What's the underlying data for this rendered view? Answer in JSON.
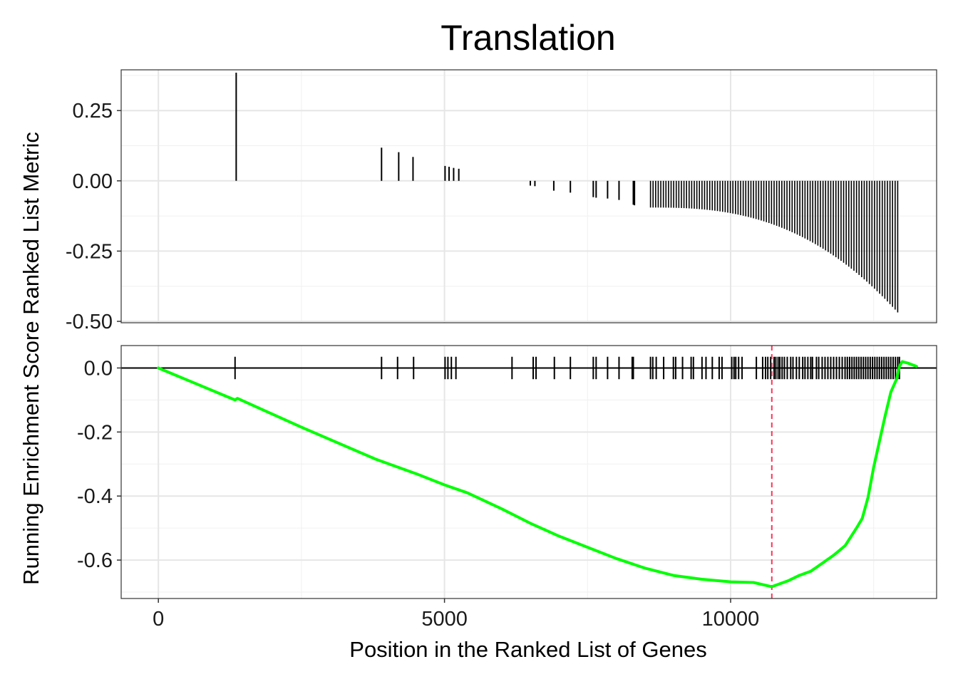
{
  "chart_data": {
    "type": "line",
    "title": "Translation",
    "xlabel": "Position in the Ranked List of Genes",
    "ylabel": "Running Enrichment Score Ranked List Metric",
    "xlim": [
      -650,
      13600
    ],
    "x_ticks": [
      0,
      5000,
      10000
    ],
    "x_tick_labels": [
      "0",
      "5000",
      "10000"
    ],
    "grid": true,
    "colors": {
      "es_line": "#00FF00",
      "peak_line": "#FF3355",
      "hits": "#000000"
    },
    "panels": [
      {
        "name": "ranked-list-metric",
        "type": "bar",
        "ylim": [
          -0.505,
          0.395
        ],
        "y_ticks": [
          0.25,
          0.0,
          -0.25,
          -0.5
        ],
        "y_tick_labels": [
          "0.25",
          "0.00",
          "-0.25",
          "-0.50"
        ],
        "bars": [
          {
            "x": 1360,
            "y": 0.385
          },
          {
            "x": 3900,
            "y": 0.118
          },
          {
            "x": 4200,
            "y": 0.102
          },
          {
            "x": 4450,
            "y": 0.085
          },
          {
            "x": 5010,
            "y": 0.053
          },
          {
            "x": 5080,
            "y": 0.05
          },
          {
            "x": 5160,
            "y": 0.046
          },
          {
            "x": 5250,
            "y": 0.043
          },
          {
            "x": 6500,
            "y": -0.017
          },
          {
            "x": 6580,
            "y": -0.019
          },
          {
            "x": 6910,
            "y": -0.035
          },
          {
            "x": 7200,
            "y": -0.042
          },
          {
            "x": 7600,
            "y": -0.058
          },
          {
            "x": 7650,
            "y": -0.06
          },
          {
            "x": 7850,
            "y": -0.063
          },
          {
            "x": 8050,
            "y": -0.068
          },
          {
            "x": 8300,
            "y": -0.085
          },
          {
            "x": 8320,
            "y": -0.087
          }
        ],
        "dense_bars": {
          "x_start": 8600,
          "x_end": 12950,
          "y_start": -0.095,
          "y_end": -0.475
        }
      },
      {
        "name": "running-enrichment-score",
        "type": "line",
        "ylim": [
          -0.72,
          0.07
        ],
        "y_ticks": [
          0.0,
          -0.2,
          -0.4,
          -0.6
        ],
        "y_tick_labels": [
          "0.0",
          "-0.2",
          "-0.4",
          "-0.6"
        ],
        "peak_x": 10720,
        "peak_es": -0.683,
        "series": [
          {
            "x": [
              0,
              1340,
              1380,
              2500,
              3800,
              4500,
              5000,
              5400,
              6000,
              6500,
              7000,
              7500,
              8000,
              8500,
              9000,
              9500,
              10000,
              10400,
              10720,
              11000,
              11200,
              11400,
              11600,
              11800,
              12000,
              12200,
              12300,
              12400,
              12500,
              12600,
              12700,
              12800,
              12900,
              12950,
              13000,
              13100,
              13250
            ],
            "y": [
              0.0,
              -0.1,
              -0.095,
              -0.185,
              -0.285,
              -0.33,
              -0.365,
              -0.39,
              -0.44,
              -0.485,
              -0.525,
              -0.56,
              -0.595,
              -0.625,
              -0.648,
              -0.66,
              -0.668,
              -0.67,
              -0.683,
              -0.665,
              -0.648,
              -0.635,
              -0.61,
              -0.585,
              -0.555,
              -0.5,
              -0.47,
              -0.405,
              -0.31,
              -0.23,
              -0.15,
              -0.075,
              -0.035,
              0.005,
              0.02,
              0.015,
              0.005
            ]
          }
        ],
        "hits": [
          1340,
          3900,
          4180,
          4460,
          5010,
          5060,
          5120,
          5200,
          6180,
          6550,
          6600,
          6920,
          7200,
          7600,
          7650,
          7850,
          8050,
          8280,
          8300,
          8600,
          8640,
          8700,
          8830,
          9000,
          9040,
          9160,
          9310,
          9350,
          9500,
          9570,
          9680,
          9800,
          9850,
          10020,
          10060,
          10090,
          10140,
          10200,
          10450,
          10560,
          10610,
          10650,
          10700,
          10760,
          10790,
          10830,
          10860,
          10900,
          10940,
          10990,
          11050,
          11090,
          11150,
          11200,
          11260,
          11300,
          11350,
          11400,
          11430,
          11500,
          11540,
          11600,
          11650,
          11700,
          11750,
          11800,
          11850,
          11900,
          11950,
          12000,
          12040,
          12080,
          12120,
          12160,
          12200,
          12240,
          12280,
          12320,
          12360,
          12400,
          12440,
          12480,
          12520,
          12560,
          12600,
          12640,
          12680,
          12720,
          12760,
          12800,
          12840,
          12880,
          12920,
          12950
        ]
      }
    ]
  }
}
